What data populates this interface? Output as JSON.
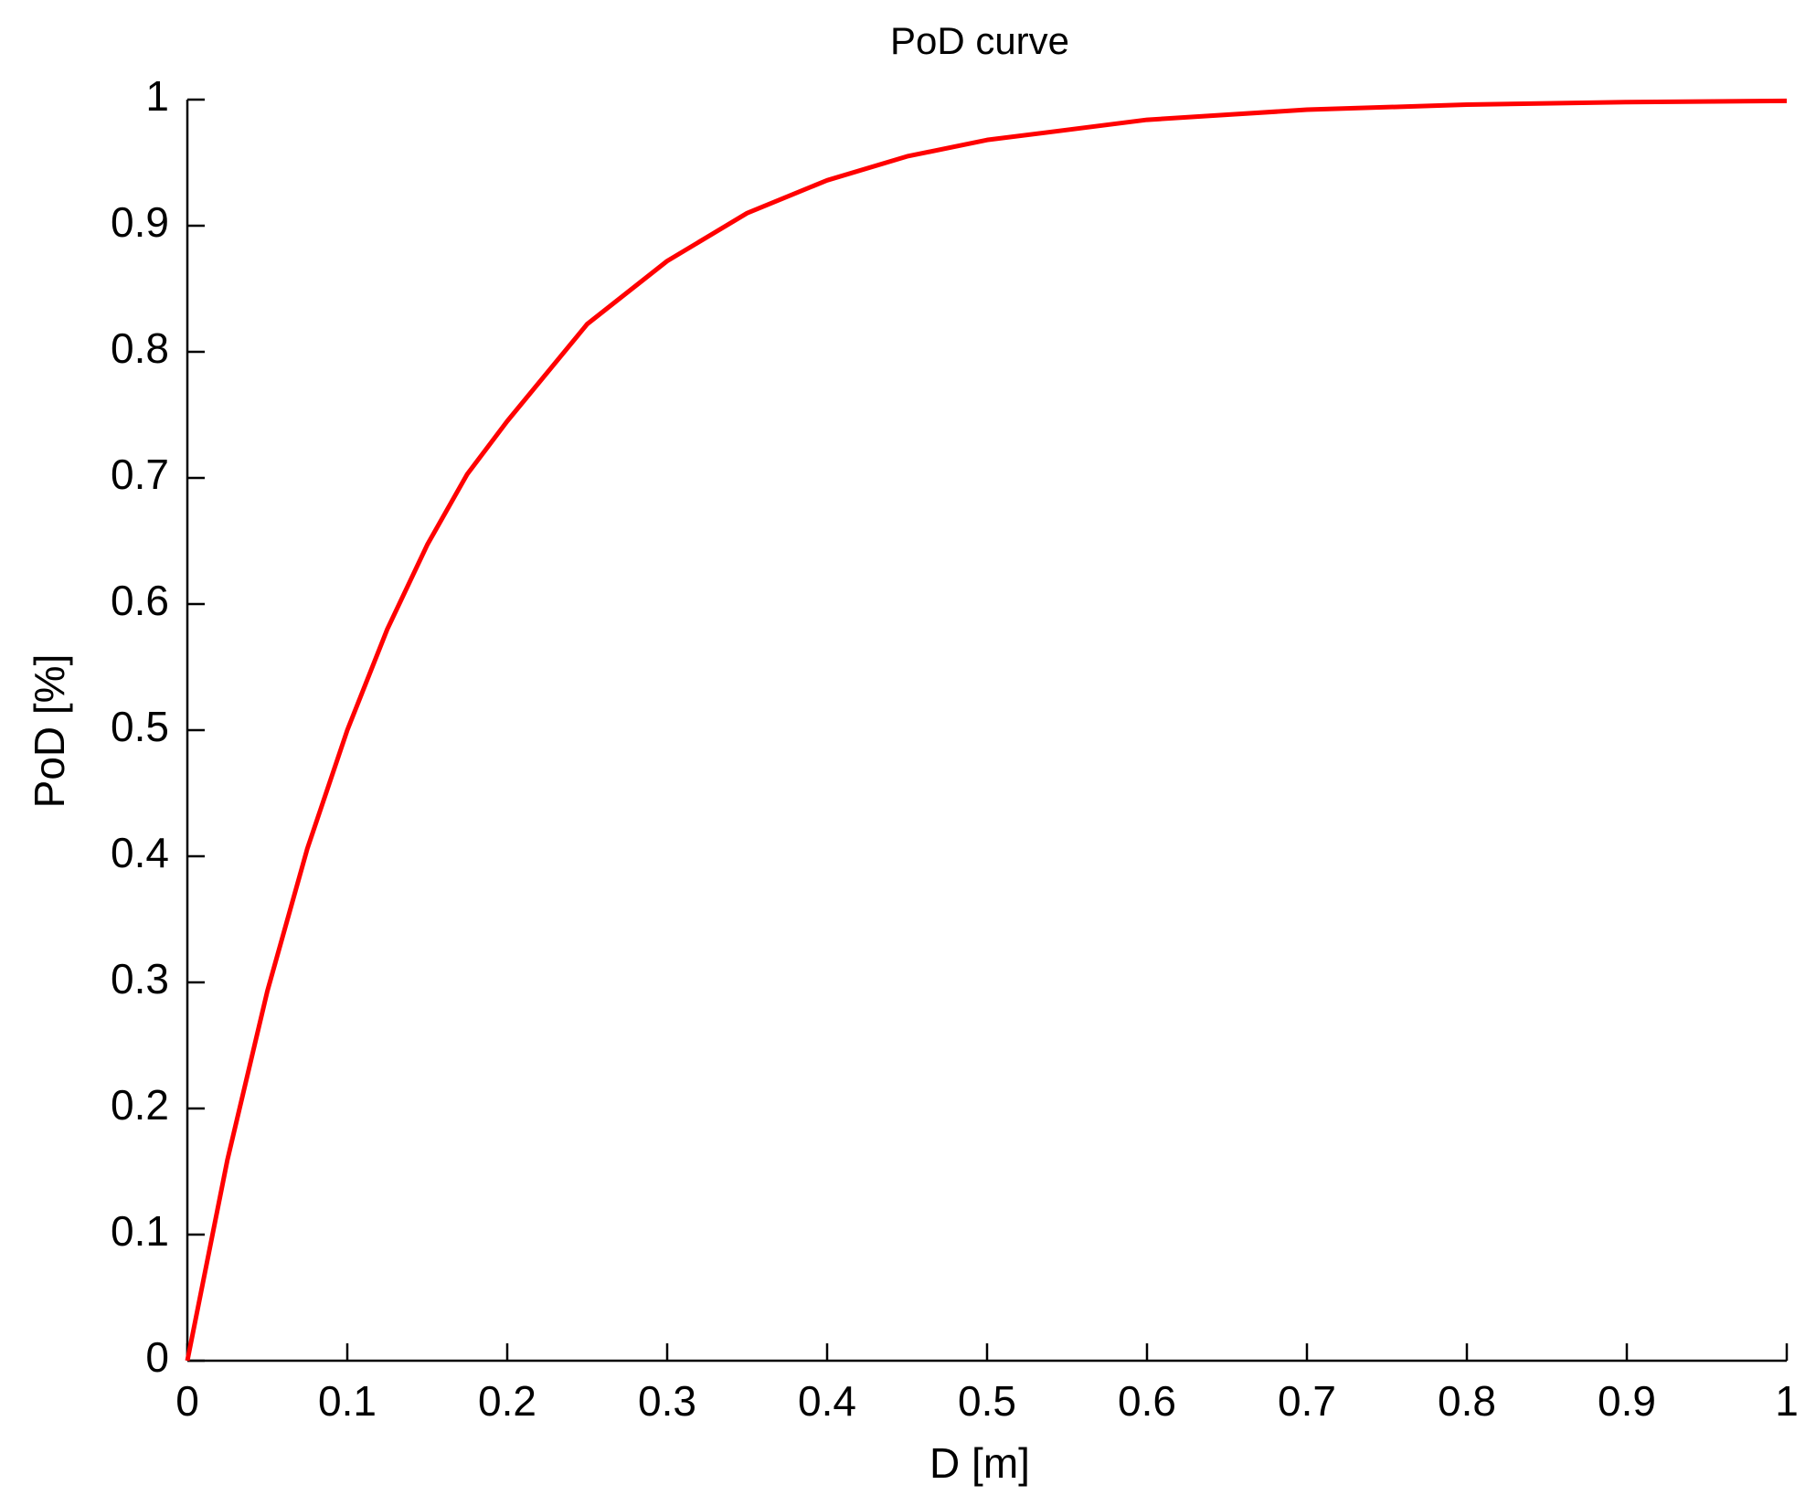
{
  "chart_data": {
    "type": "line",
    "title": "PoD curve",
    "x_label": "D [m]",
    "y_label": "PoD [%]",
    "x": [
      0,
      0.025,
      0.05,
      0.075,
      0.1,
      0.125,
      0.15,
      0.175,
      0.2,
      0.25,
      0.3,
      0.35,
      0.4,
      0.45,
      0.5,
      0.6,
      0.7,
      0.8,
      0.9,
      1.0
    ],
    "series": [
      {
        "name": "PoD",
        "color": "#ff0000",
        "values": [
          0,
          0.159,
          0.293,
          0.406,
          0.5,
          0.58,
          0.647,
          0.703,
          0.745,
          0.822,
          0.872,
          0.91,
          0.936,
          0.955,
          0.968,
          0.984,
          0.992,
          0.996,
          0.998,
          0.999
        ]
      }
    ],
    "xlim": [
      0,
      1
    ],
    "ylim": [
      0,
      1
    ],
    "xticks": [
      0,
      0.1,
      0.2,
      0.3,
      0.4,
      0.5,
      0.6,
      0.7,
      0.8,
      0.9,
      1
    ],
    "yticks": [
      0,
      0.1,
      0.2,
      0.3,
      0.4,
      0.5,
      0.6,
      0.7,
      0.8,
      0.9,
      1
    ],
    "grid": false
  }
}
